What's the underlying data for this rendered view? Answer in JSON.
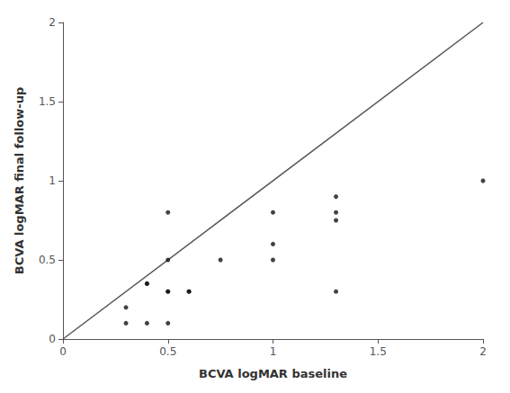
{
  "chart_data": {
    "type": "scatter",
    "xlabel": "BCVA logMAR baseline",
    "ylabel": "BCVA logMAR final follow-up",
    "xlim": [
      0,
      2
    ],
    "ylim": [
      0,
      2
    ],
    "xticks": [
      0,
      0.5,
      1,
      1.5,
      2
    ],
    "yticks": [
      0,
      0.5,
      1,
      1.5,
      2
    ],
    "grid": false,
    "series": [
      {
        "type": "line",
        "color": "#555555",
        "x": [
          0,
          2
        ],
        "values": [
          0,
          2
        ]
      },
      {
        "type": "scatter",
        "color": "#111111",
        "x": [
          0.3,
          0.3,
          0.4,
          0.4,
          0.4,
          0.5,
          0.5,
          0.5,
          0.5,
          0.5,
          0.6,
          0.6,
          0.75,
          1.0,
          1.0,
          1.0,
          1.3,
          1.3,
          1.3,
          1.3,
          2.0
        ],
        "values": [
          0.1,
          0.2,
          0.1,
          0.35,
          0.35,
          0.1,
          0.3,
          0.3,
          0.5,
          0.8,
          0.3,
          0.3,
          0.5,
          0.5,
          0.6,
          0.8,
          0.3,
          0.75,
          0.8,
          0.9,
          1.0
        ]
      }
    ]
  }
}
